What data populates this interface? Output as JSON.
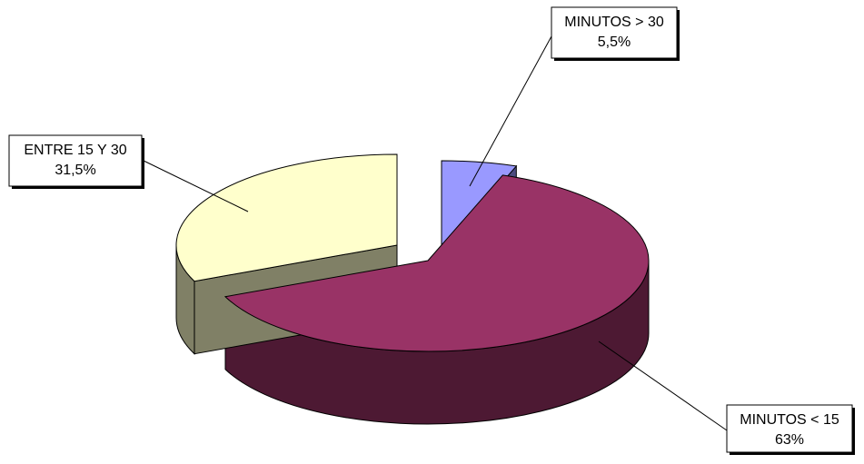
{
  "chart_data": {
    "type": "pie",
    "style": "3d-exploded",
    "slices": [
      {
        "label": "MINUTOS > 30",
        "value_text": "5,5%",
        "value": 5.5,
        "color": "#9999ff",
        "side_color": "#4c4c80"
      },
      {
        "label": "MINUTOS < 15",
        "value_text": "63%",
        "value": 63,
        "color": "#993366",
        "side_color": "#4d1933"
      },
      {
        "label": "ENTRE 15 Y 30",
        "value_text": "31,5%",
        "value": 31.5,
        "color": "#ffffcc",
        "side_color": "#808066"
      }
    ],
    "legend": "none",
    "data_labels": "callout-boxes-with-leader-lines"
  }
}
